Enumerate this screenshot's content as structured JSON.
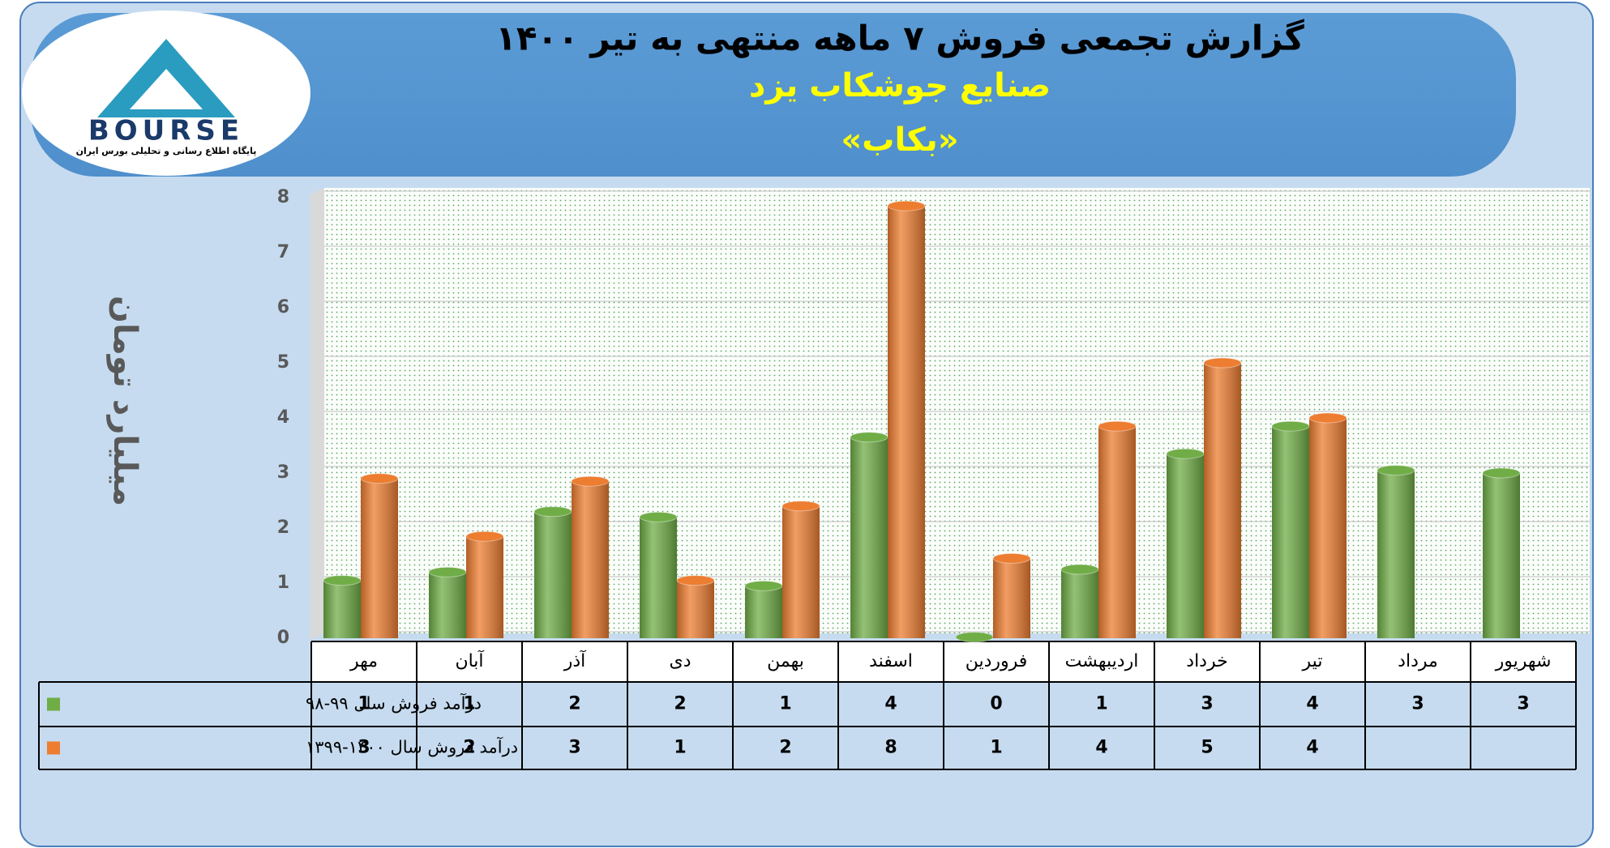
{
  "logo": {
    "name": "BOURSE",
    "caption": "پایگاه اطلاع رسانی و تحلیلی بورس ایران"
  },
  "chart_data": {
    "type": "bar",
    "title": "گزارش تجمعی فروش ۷ ماهه منتهی به تیر ۱۴۰۰",
    "subtitle": "صنایع جوشکاب یزد",
    "symbol": "«بکاب»",
    "y_label": "میلیارد تومان",
    "categories": [
      "مهر",
      "آبان",
      "آذر",
      "دی",
      "بهمن",
      "اسفند",
      "فروردین",
      "اردیبهشت",
      "خرداد",
      "تیر",
      "مرداد",
      "شهریور"
    ],
    "series": [
      {
        "name": "درآمد فروش سال ۹۹-۹۸",
        "color": "#70ad47",
        "values": [
          1.05,
          1.2,
          2.3,
          2.2,
          0.95,
          3.65,
          0.02,
          1.25,
          3.35,
          3.85,
          3.05,
          3.0
        ],
        "value_labels": [
          "1",
          "1",
          "2",
          "2",
          "1",
          "4",
          "0",
          "1",
          "3",
          "4",
          "3",
          "3"
        ]
      },
      {
        "name": "درآمد فروش سال ۱۴۰۰-۱۳۹۹",
        "color": "#ed7d31",
        "values": [
          2.9,
          1.85,
          2.85,
          1.05,
          2.4,
          7.85,
          1.45,
          3.85,
          5.0,
          4.0,
          null,
          null
        ],
        "value_labels": [
          "3",
          "2",
          "3",
          "1",
          "2",
          "8",
          "1",
          "4",
          "5",
          "4",
          null,
          null
        ]
      }
    ],
    "ylim": [
      0,
      8
    ],
    "yticks": [
      0,
      1,
      2,
      3,
      4,
      5,
      6,
      7,
      8
    ],
    "grid": true
  }
}
